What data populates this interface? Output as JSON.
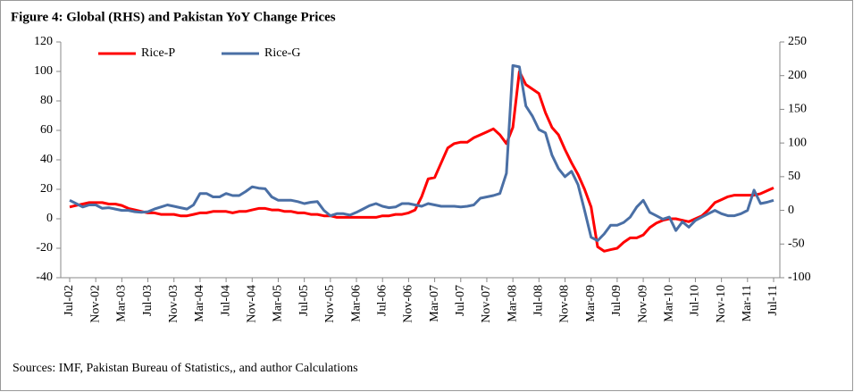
{
  "chart_data": {
    "type": "line",
    "title": "Figure 4: Global (RHS) and Pakistan YoY Change Prices",
    "note": "Sources:  IMF, Pakistan Bureau of Statistics,, and author  Calculations",
    "categories": [
      "Jul-02",
      null,
      null,
      null,
      "Nov-02",
      null,
      null,
      null,
      "Mar-03",
      null,
      null,
      null,
      "Jul-03",
      null,
      null,
      null,
      "Nov-03",
      null,
      null,
      null,
      "Mar-04",
      null,
      null,
      null,
      "Jul-04",
      null,
      null,
      null,
      "Nov-04",
      null,
      null,
      null,
      "Mar-05",
      null,
      null,
      null,
      "Jul-05",
      null,
      null,
      null,
      "Nov-05",
      null,
      null,
      null,
      "Mar-06",
      null,
      null,
      null,
      "Jul-06",
      null,
      null,
      null,
      "Nov-06",
      null,
      null,
      null,
      "Mar-07",
      null,
      null,
      null,
      "Jul-07",
      null,
      null,
      null,
      "Nov-07",
      null,
      null,
      null,
      "Mar-08",
      null,
      null,
      null,
      "Jul-08",
      null,
      null,
      null,
      "Nov-08",
      null,
      null,
      null,
      "Mar-09",
      null,
      null,
      null,
      "Jul-09",
      null,
      null,
      null,
      "Nov-09",
      null,
      null,
      null,
      "Mar-10",
      null,
      null,
      null,
      "Jul-10",
      null,
      null,
      null,
      "Nov-10",
      null,
      null,
      null,
      "Mar-11",
      null,
      null,
      null,
      "Jul-11"
    ],
    "series": [
      {
        "name": "Rice-P",
        "color": "#ff0000",
        "axis": "y",
        "values": [
          8,
          9,
          10,
          11,
          11,
          11,
          10,
          10,
          9,
          7,
          6,
          5,
          4,
          4,
          3,
          3,
          3,
          2,
          2,
          3,
          4,
          4,
          5,
          5,
          5,
          4,
          5,
          5,
          6,
          7,
          7,
          6,
          6,
          5,
          5,
          4,
          4,
          3,
          3,
          2,
          2,
          1,
          1,
          1,
          1,
          1,
          1,
          1,
          2,
          2,
          3,
          3,
          4,
          6,
          15,
          27,
          28,
          38,
          48,
          51,
          52,
          52,
          55,
          57,
          59,
          61,
          57,
          51,
          62,
          100,
          91,
          88,
          85,
          72,
          62,
          57,
          47,
          38,
          30,
          20,
          8,
          -19,
          -22,
          -21,
          -20,
          -16,
          -13,
          -13,
          -11,
          -6,
          -3,
          -1,
          0,
          0,
          -1,
          -2,
          0,
          2,
          6,
          11,
          13,
          15,
          16,
          16,
          16,
          16,
          17,
          19,
          21
        ]
      },
      {
        "name": "Rice-G",
        "color": "#4a6fa5",
        "axis": "y2",
        "values": [
          15,
          10,
          5,
          8,
          8,
          3,
          4,
          2,
          0,
          0,
          -2,
          -3,
          -2,
          2,
          5,
          8,
          6,
          4,
          2,
          8,
          25,
          25,
          20,
          20,
          25,
          22,
          22,
          28,
          35,
          33,
          32,
          20,
          15,
          15,
          15,
          13,
          10,
          12,
          13,
          0,
          -8,
          -5,
          -5,
          -7,
          -3,
          2,
          7,
          10,
          6,
          4,
          5,
          10,
          10,
          8,
          6,
          10,
          8,
          6,
          6,
          6,
          5,
          6,
          8,
          18,
          20,
          22,
          25,
          55,
          215,
          213,
          155,
          140,
          120,
          115,
          82,
          62,
          50,
          58,
          38,
          0,
          -40,
          -45,
          -35,
          -22,
          -22,
          -18,
          -10,
          5,
          15,
          -3,
          -8,
          -13,
          -10,
          -30,
          -17,
          -25,
          -15,
          -10,
          -5,
          0,
          -5,
          -8,
          -8,
          -5,
          0,
          30,
          10,
          12,
          15
        ]
      }
    ],
    "ylim": [
      -40,
      120
    ],
    "yticks": [
      -40,
      -20,
      0,
      20,
      40,
      60,
      80,
      100,
      120
    ],
    "y2lim": [
      -100,
      250
    ],
    "y2ticks": [
      -100,
      -50,
      0,
      50,
      100,
      150,
      200,
      250
    ],
    "legend": "top-left"
  }
}
